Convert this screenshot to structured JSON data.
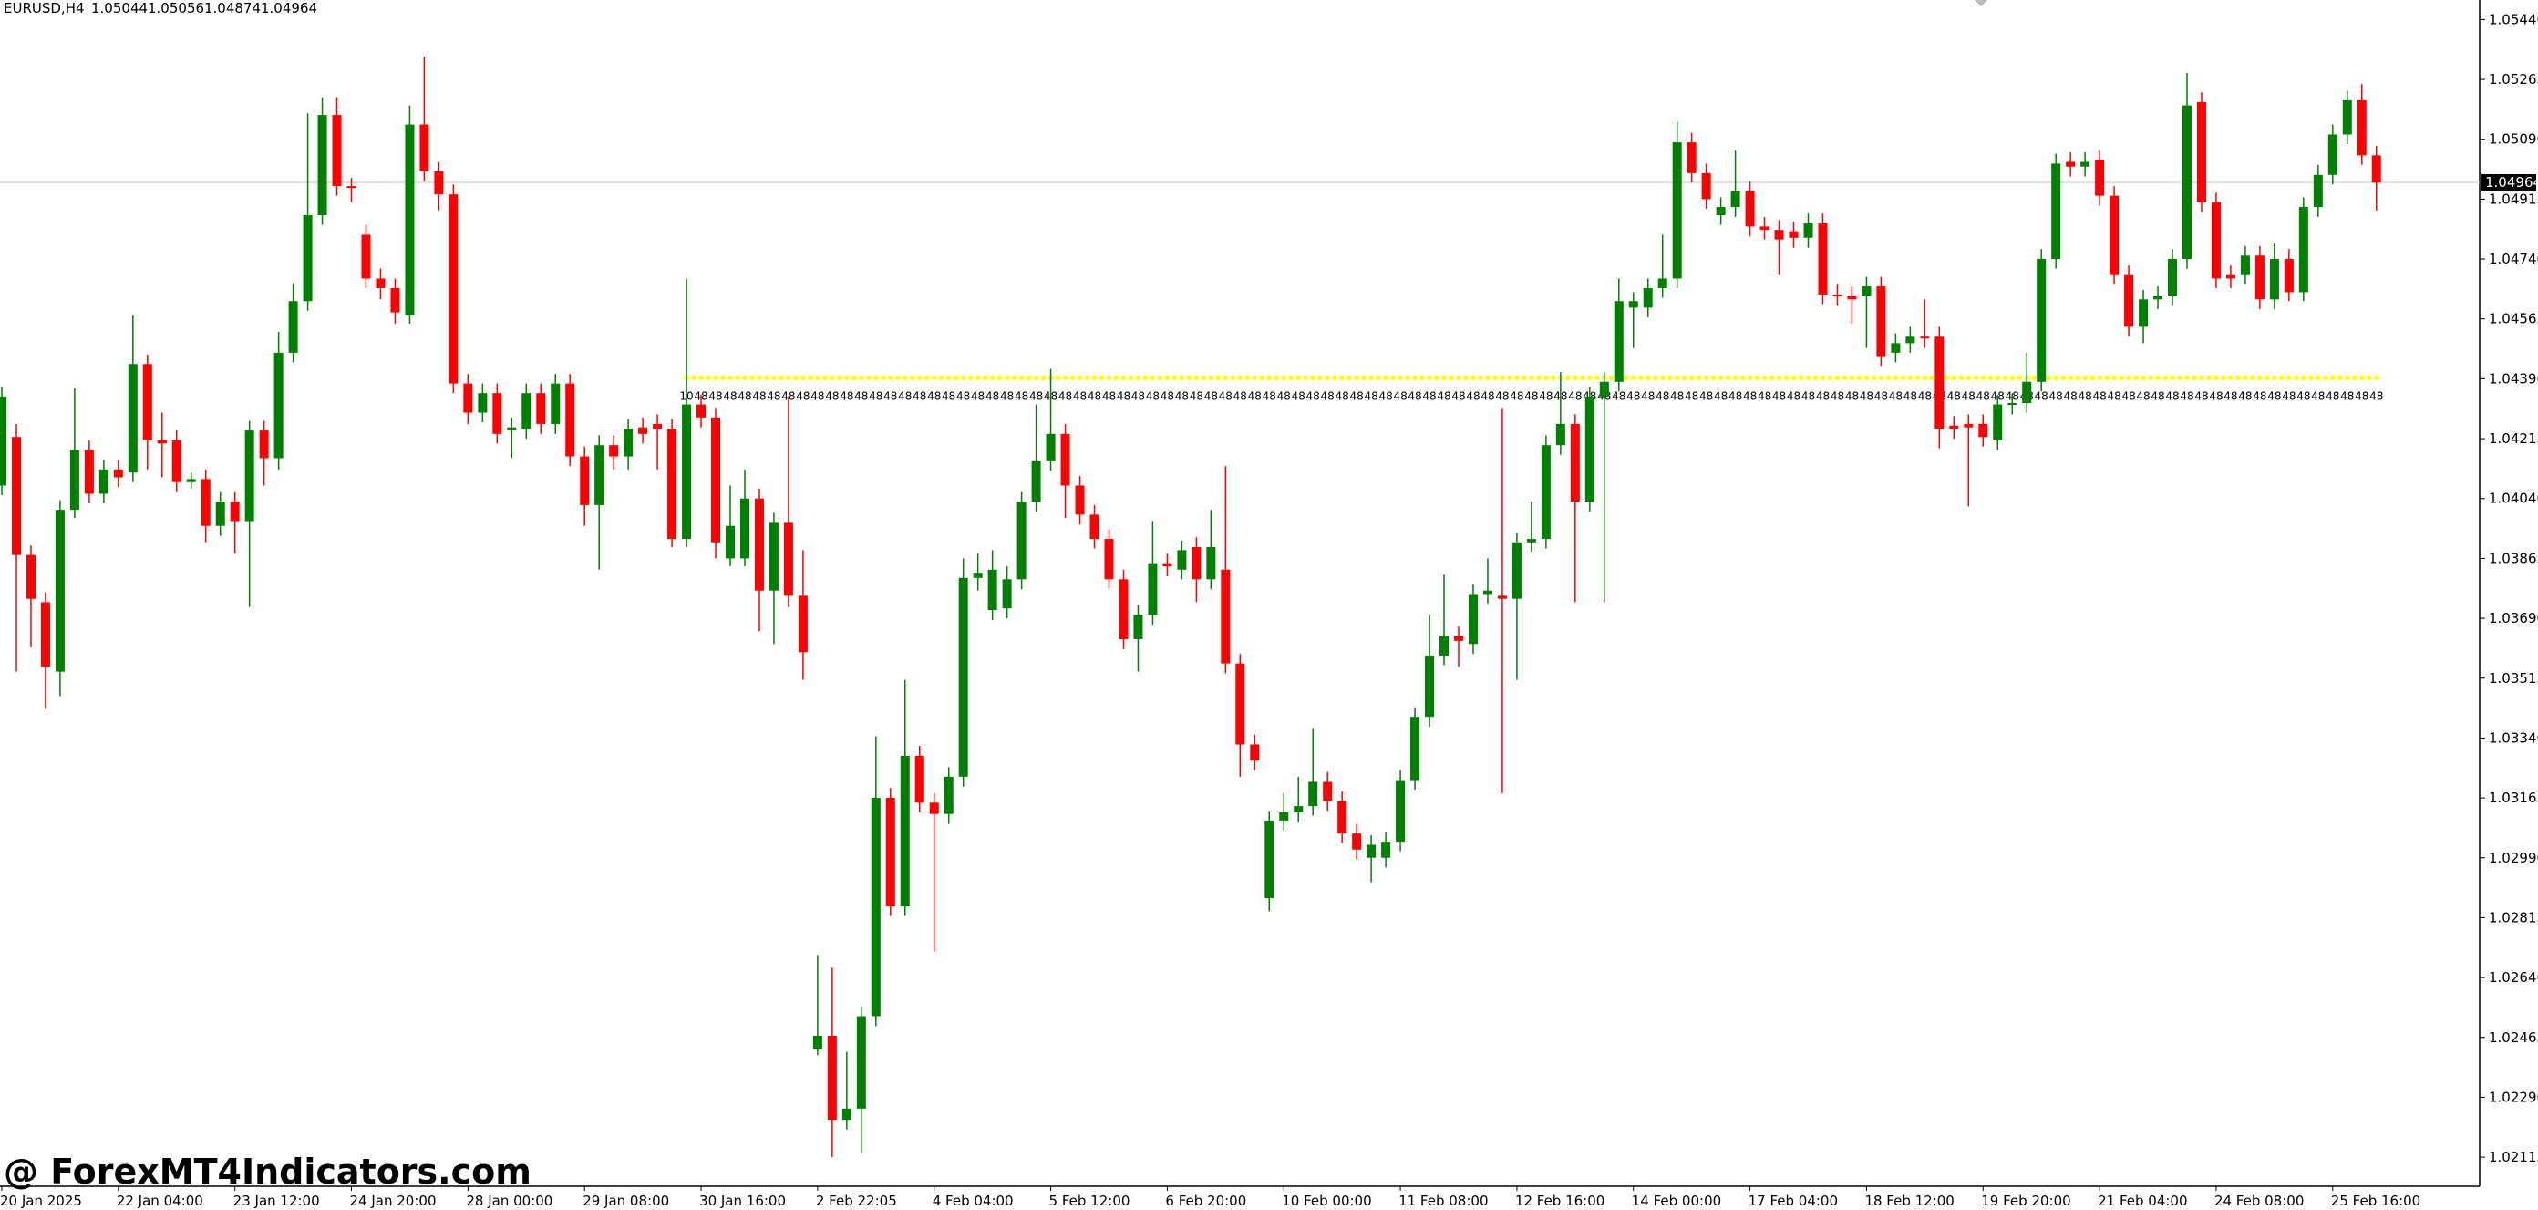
{
  "chart_data": {
    "type": "candlestick",
    "title": "EURUSD,H4",
    "header_values": [
      1.05044,
      1.05056,
      1.04874,
      1.04964
    ],
    "up_color": "#008000",
    "down_color": "#ff0000",
    "ylim": [
      1.0203,
      1.05497
    ],
    "yticks": [
      {
        "value": 1.0544,
        "label": "1.05440"
      },
      1.05265,
      {
        "value": 1.0509,
        "label": "1.05090"
      },
      1.04915,
      {
        "value": 1.0474,
        "label": "1.04740"
      },
      1.04565,
      {
        "value": 1.0439,
        "label": "1.04390"
      },
      1.04215,
      {
        "value": 1.0404,
        "label": "1.04040"
      },
      1.03865,
      {
        "value": 1.0369,
        "label": "1.03690"
      },
      1.03515,
      {
        "value": 1.0334,
        "label": "1.03340"
      },
      1.03165,
      {
        "value": 1.0299,
        "label": "1.02990"
      },
      1.02815,
      {
        "value": 1.0264,
        "label": "1.02640"
      },
      1.02465,
      {
        "value": 1.0229,
        "label": "1.02290"
      },
      1.02115
    ],
    "current_price": 1.04964,
    "level": {
      "value": 1.04393,
      "start": 47,
      "first_label": "10",
      "label": "48",
      "color": "#ffff00"
    },
    "watermark": "@ ForexMT4Indicators.com",
    "categories": [
      "20 Jan 2025",
      null,
      null,
      null,
      null,
      null,
      null,
      null,
      "22 Jan 04:00",
      null,
      null,
      null,
      null,
      null,
      null,
      null,
      "23 Jan 12:00",
      null,
      null,
      null,
      null,
      null,
      null,
      null,
      "24 Jan 20:00",
      null,
      null,
      null,
      null,
      null,
      null,
      null,
      "28 Jan 00:00",
      null,
      null,
      null,
      null,
      null,
      null,
      null,
      "29 Jan 08:00",
      null,
      null,
      null,
      null,
      null,
      null,
      null,
      "30 Jan 16:00",
      null,
      null,
      null,
      null,
      null,
      null,
      null,
      "2 Feb 22:05",
      null,
      null,
      null,
      null,
      null,
      null,
      null,
      "4 Feb 04:00",
      null,
      null,
      null,
      null,
      null,
      null,
      null,
      "5 Feb 12:00",
      null,
      null,
      null,
      null,
      null,
      null,
      null,
      "6 Feb 20:00",
      null,
      null,
      null,
      null,
      null,
      null,
      null,
      "10 Feb 00:00",
      null,
      null,
      null,
      null,
      null,
      null,
      null,
      "11 Feb 08:00",
      null,
      null,
      null,
      null,
      null,
      null,
      null,
      "12 Feb 16:00",
      null,
      null,
      null,
      null,
      null,
      null,
      null,
      "14 Feb 00:00",
      null,
      null,
      null,
      null,
      null,
      null,
      null,
      "17 Feb 04:00",
      null,
      null,
      null,
      null,
      null,
      null,
      null,
      "18 Feb 12:00",
      null,
      null,
      null,
      null,
      null,
      null,
      null,
      "19 Feb 20:00",
      null,
      null,
      null,
      null,
      null,
      null,
      null,
      "21 Feb 04:00",
      null,
      null,
      null,
      null,
      null,
      null,
      null,
      "24 Feb 08:00",
      null,
      null,
      null,
      null,
      null,
      null,
      null,
      "25 Feb 16:00",
      null,
      null,
      null
    ],
    "ohlc": [
      [
        1.04078,
        1.04367,
        1.0405,
        1.04338
      ],
      [
        1.0422,
        1.04258,
        1.03534,
        1.03875
      ],
      [
        1.03875,
        1.03903,
        1.03605,
        1.03747
      ],
      [
        1.03737,
        1.03766,
        1.03425,
        1.03548
      ],
      [
        1.03534,
        1.04035,
        1.03463,
        1.04007
      ],
      [
        1.04007,
        1.04362,
        1.03983,
        1.04182
      ],
      [
        1.04182,
        1.0421,
        1.04026,
        1.04054
      ],
      [
        1.04054,
        1.04154,
        1.04026,
        1.04125
      ],
      [
        1.04125,
        1.04154,
        1.04073,
        1.04102
      ],
      [
        1.04116,
        1.04575,
        1.04088,
        1.04433
      ],
      [
        1.04433,
        1.04461,
        1.04125,
        1.0421
      ],
      [
        1.0421,
        1.04291,
        1.04102,
        1.04201
      ],
      [
        1.0421,
        1.04239,
        1.04059,
        1.04088
      ],
      [
        1.04088,
        1.04116,
        1.04069,
        1.04097
      ],
      [
        1.04097,
        1.04125,
        1.03912,
        1.0396
      ],
      [
        1.0396,
        1.04059,
        1.03931,
        1.04031
      ],
      [
        1.04031,
        1.04059,
        1.03879,
        1.03974
      ],
      [
        1.03974,
        1.04267,
        1.03723,
        1.04239
      ],
      [
        1.04239,
        1.04267,
        1.04078,
        1.04158
      ],
      [
        1.04158,
        1.04527,
        1.04125,
        1.04466
      ],
      [
        1.04466,
        1.04669,
        1.04438,
        1.04617
      ],
      [
        1.04617,
        1.05166,
        1.04589,
        1.04868
      ],
      [
        1.04868,
        1.05213,
        1.0484,
        1.05161
      ],
      [
        1.05161,
        1.05213,
        1.04925,
        1.04953
      ],
      [
        1.04953,
        1.04977,
        1.04906,
        1.04948
      ],
      [
        1.04811,
        1.0484,
        1.04655,
        1.04683
      ],
      [
        1.04683,
        1.04712,
        1.04622,
        1.04655
      ],
      [
        1.04655,
        1.04683,
        1.04551,
        1.04584
      ],
      [
        1.04575,
        1.05189,
        1.04551,
        1.05133
      ],
      [
        1.05133,
        1.05331,
        1.04967,
        1.04996
      ],
      [
        1.04996,
        1.05024,
        1.04882,
        1.04929
      ],
      [
        1.04929,
        1.04958,
        1.04348,
        1.04376
      ],
      [
        1.04376,
        1.04404,
        1.04258,
        1.04291
      ],
      [
        1.04291,
        1.04376,
        1.04263,
        1.04348
      ],
      [
        1.04348,
        1.04376,
        1.04201,
        1.04229
      ],
      [
        1.04239,
        1.04277,
        1.04158,
        1.04248
      ],
      [
        1.04244,
        1.04376,
        1.04215,
        1.04348
      ],
      [
        1.04348,
        1.04376,
        1.04229,
        1.04258
      ],
      [
        1.04258,
        1.04404,
        1.04229,
        1.04376
      ],
      [
        1.04376,
        1.04404,
        1.04135,
        1.04163
      ],
      [
        1.04163,
        1.04192,
        1.0396,
        1.04021
      ],
      [
        1.04021,
        1.04225,
        1.03832,
        1.04196
      ],
      [
        1.04196,
        1.04225,
        1.04125,
        1.04163
      ],
      [
        1.04163,
        1.04272,
        1.04125,
        1.04244
      ],
      [
        1.04248,
        1.04277,
        1.04201,
        1.04229
      ],
      [
        1.04258,
        1.04286,
        1.04125,
        1.04244
      ],
      [
        1.04244,
        1.04272,
        1.03898,
        1.03922
      ],
      [
        1.03922,
        1.04683,
        1.03898,
        1.04315
      ],
      [
        1.04315,
        1.04343,
        1.04248,
        1.04277
      ],
      [
        1.04277,
        1.04305,
        1.03865,
        1.03912
      ],
      [
        1.03865,
        1.04078,
        1.03842,
        1.0396
      ],
      [
        1.03865,
        1.04125,
        1.03842,
        1.0404
      ],
      [
        1.0404,
        1.04069,
        1.03652,
        1.03771
      ],
      [
        1.03771,
        1.03998,
        1.03615,
        1.03969
      ],
      [
        1.03969,
        1.04338,
        1.03723,
        1.03756
      ],
      [
        1.03756,
        1.03889,
        1.0351,
        1.03591
      ],
      [
        1.02432,
        1.02706,
        1.02413,
        1.0247
      ],
      [
        1.0247,
        1.02669,
        1.02115,
        1.02224
      ],
      [
        1.02224,
        1.02423,
        1.02196,
        1.02257
      ],
      [
        1.02257,
        1.02555,
        1.02129,
        1.02527
      ],
      [
        1.02527,
        1.03345,
        1.02498,
        1.03165
      ],
      [
        1.03165,
        1.03194,
        1.0282,
        1.02848
      ],
      [
        1.02848,
        1.0351,
        1.0282,
        1.03288
      ],
      [
        1.03288,
        1.03317,
        1.03123,
        1.03151
      ],
      [
        1.03151,
        1.03179,
        1.02716,
        1.03118
      ],
      [
        1.03118,
        1.03255,
        1.03089,
        1.03227
      ],
      [
        1.03227,
        1.03865,
        1.03198,
        1.03808
      ],
      [
        1.03808,
        1.03879,
        1.03771,
        1.03823
      ],
      [
        1.03714,
        1.03889,
        1.03685,
        1.03832
      ],
      [
        1.03719,
        1.03842,
        1.0369,
        1.03804
      ],
      [
        1.03804,
        1.04059,
        1.03775,
        1.04031
      ],
      [
        1.04031,
        1.04315,
        1.04002,
        1.04149
      ],
      [
        1.04149,
        1.04419,
        1.04121,
        1.04229
      ],
      [
        1.04229,
        1.04258,
        1.03983,
        1.04078
      ],
      [
        1.04078,
        1.04106,
        1.03964,
        1.03993
      ],
      [
        1.03993,
        1.04021,
        1.03894,
        1.03922
      ],
      [
        1.03922,
        1.0395,
        1.03775,
        1.03804
      ],
      [
        1.03804,
        1.03832,
        1.036,
        1.03629
      ],
      [
        1.03629,
        1.03728,
        1.03534,
        1.037
      ],
      [
        1.037,
        1.03974,
        1.03671,
        1.03851
      ],
      [
        1.03851,
        1.03879,
        1.03813,
        1.03842
      ],
      [
        1.03832,
        1.03917,
        1.03804,
        1.03889
      ],
      [
        1.03898,
        1.03927,
        1.03737,
        1.03804
      ],
      [
        1.03804,
        1.04007,
        1.03775,
        1.03898
      ],
      [
        1.03832,
        1.04135,
        1.03529,
        1.03558
      ],
      [
        1.03558,
        1.03586,
        1.03227,
        1.03321
      ],
      [
        1.03321,
        1.0335,
        1.03246,
        1.03274
      ],
      [
        1.02872,
        1.03127,
        1.02834,
        1.03099
      ],
      [
        1.03099,
        1.03179,
        1.0307,
        1.03123
      ],
      [
        1.03123,
        1.03227,
        1.03094,
        1.03141
      ],
      [
        1.03141,
        1.03369,
        1.03113,
        1.03212
      ],
      [
        1.03212,
        1.03241,
        1.03127,
        1.03156
      ],
      [
        1.03156,
        1.03184,
        1.03033,
        1.03061
      ],
      [
        1.03061,
        1.03089,
        1.02985,
        1.03014
      ],
      [
        1.0299,
        1.03056,
        1.02919,
        1.03028
      ],
      [
        1.0299,
        1.03066,
        1.02962,
        1.03037
      ],
      [
        1.03037,
        1.03246,
        1.03009,
        1.03217
      ],
      [
        1.03217,
        1.0343,
        1.03189,
        1.03402
      ],
      [
        1.03402,
        1.037,
        1.03373,
        1.03581
      ],
      [
        1.03581,
        1.03818,
        1.03553,
        1.03638
      ],
      [
        1.03638,
        1.03667,
        1.03548,
        1.03624
      ],
      [
        1.03615,
        1.0379,
        1.03586,
        1.03761
      ],
      [
        1.03761,
        1.03865,
        1.03733,
        1.03771
      ],
      [
        1.03756,
        1.04305,
        1.03179,
        1.03747
      ],
      [
        1.03747,
        1.03941,
        1.0351,
        1.03912
      ],
      [
        1.03912,
        1.04031,
        1.03884,
        1.03922
      ],
      [
        1.03922,
        1.04225,
        1.03894,
        1.04196
      ],
      [
        1.04196,
        1.04409,
        1.04168,
        1.04258
      ],
      [
        1.04258,
        1.04286,
        1.03737,
        1.04031
      ],
      [
        1.04031,
        1.04367,
        1.04002,
        1.04338
      ],
      [
        1.04338,
        1.04409,
        1.03737,
        1.04381
      ],
      [
        1.04381,
        1.04683,
        1.04353,
        1.04617
      ],
      [
        1.04598,
        1.04643,
        1.0448,
        1.04617
      ],
      [
        1.04598,
        1.04683,
        1.0457,
        1.04655
      ],
      [
        1.04655,
        1.04811,
        1.04627,
        1.04683
      ],
      [
        1.04683,
        1.05142,
        1.04655,
        1.05081
      ],
      [
        1.05081,
        1.05109,
        1.04963,
        1.04991
      ],
      [
        1.04991,
        1.05019,
        1.04887,
        1.04915
      ],
      [
        1.04868,
        1.0492,
        1.0484,
        1.04892
      ],
      [
        1.04892,
        1.05057,
        1.04863,
        1.04939
      ],
      [
        1.04939,
        1.04967,
        1.04806,
        1.04835
      ],
      [
        1.04835,
        1.04863,
        1.04797,
        1.04825
      ],
      [
        1.04825,
        1.04854,
        1.04693,
        1.04797
      ],
      [
        1.04821,
        1.04849,
        1.04773,
        1.04802
      ],
      [
        1.04802,
        1.04873,
        1.04773,
        1.04844
      ],
      [
        1.04844,
        1.04873,
        1.04608,
        1.04636
      ],
      [
        1.04636,
        1.04665,
        1.04603,
        1.04631
      ],
      [
        1.04631,
        1.0466,
        1.04551,
        1.04622
      ],
      [
        1.04631,
        1.04688,
        1.0448,
        1.0466
      ],
      [
        1.0466,
        1.04688,
        1.04428,
        1.04456
      ],
      [
        1.04466,
        1.04523,
        1.04438,
        1.04494
      ],
      [
        1.04494,
        1.04542,
        1.04466,
        1.04513
      ],
      [
        1.04513,
        1.04622,
        1.0448,
        1.04508
      ],
      [
        1.04513,
        1.04542,
        1.04187,
        1.04244
      ],
      [
        1.04253,
        1.04281,
        1.04215,
        1.04244
      ],
      [
        1.04258,
        1.04286,
        1.04017,
        1.04248
      ],
      [
        1.04258,
        1.04286,
        1.04192,
        1.0422
      ],
      [
        1.0421,
        1.04343,
        1.04182,
        1.04315
      ],
      [
        1.04315,
        1.04348,
        1.04286,
        1.04319
      ],
      [
        1.04319,
        1.04466,
        1.04291,
        1.04381
      ],
      [
        1.04381,
        1.04769,
        1.04353,
        1.0474
      ],
      [
        1.0474,
        1.05048,
        1.04712,
        1.05019
      ],
      [
        1.05024,
        1.05052,
        1.04981,
        1.0501
      ],
      [
        1.0501,
        1.05052,
        1.04981,
        1.05024
      ],
      [
        1.05029,
        1.05057,
        1.04896,
        1.04925
      ],
      [
        1.04925,
        1.04953,
        1.04665,
        1.04693
      ],
      [
        1.04693,
        1.04721,
        1.04513,
        1.04542
      ],
      [
        1.04542,
        1.0465,
        1.04494,
        1.04622
      ],
      [
        1.04622,
        1.0466,
        1.04594,
        1.04631
      ],
      [
        1.04631,
        1.04769,
        1.04603,
        1.0474
      ],
      [
        1.0474,
        1.05284,
        1.04712,
        1.05189
      ],
      [
        1.05199,
        1.05227,
        1.04877,
        1.04906
      ],
      [
        1.04906,
        1.04934,
        1.04655,
        1.04683
      ],
      [
        1.04693,
        1.04721,
        1.04655,
        1.04683
      ],
      [
        1.04693,
        1.04778,
        1.04665,
        1.0475
      ],
      [
        1.0475,
        1.04778,
        1.04594,
        1.04622
      ],
      [
        1.04622,
        1.04788,
        1.04594,
        1.0474
      ],
      [
        1.0474,
        1.04769,
        1.04617,
        1.04643
      ],
      [
        1.04643,
        1.0492,
        1.04617,
        1.04892
      ],
      [
        1.04892,
        1.05015,
        1.04863,
        1.04986
      ],
      [
        1.04986,
        1.05133,
        1.04958,
        1.05104
      ],
      [
        1.05104,
        1.05232,
        1.05076,
        1.05204
      ],
      [
        1.05204,
        1.05251,
        1.05015,
        1.05043
      ],
      [
        1.05043,
        1.05071,
        1.04882,
        1.04963
      ]
    ]
  }
}
